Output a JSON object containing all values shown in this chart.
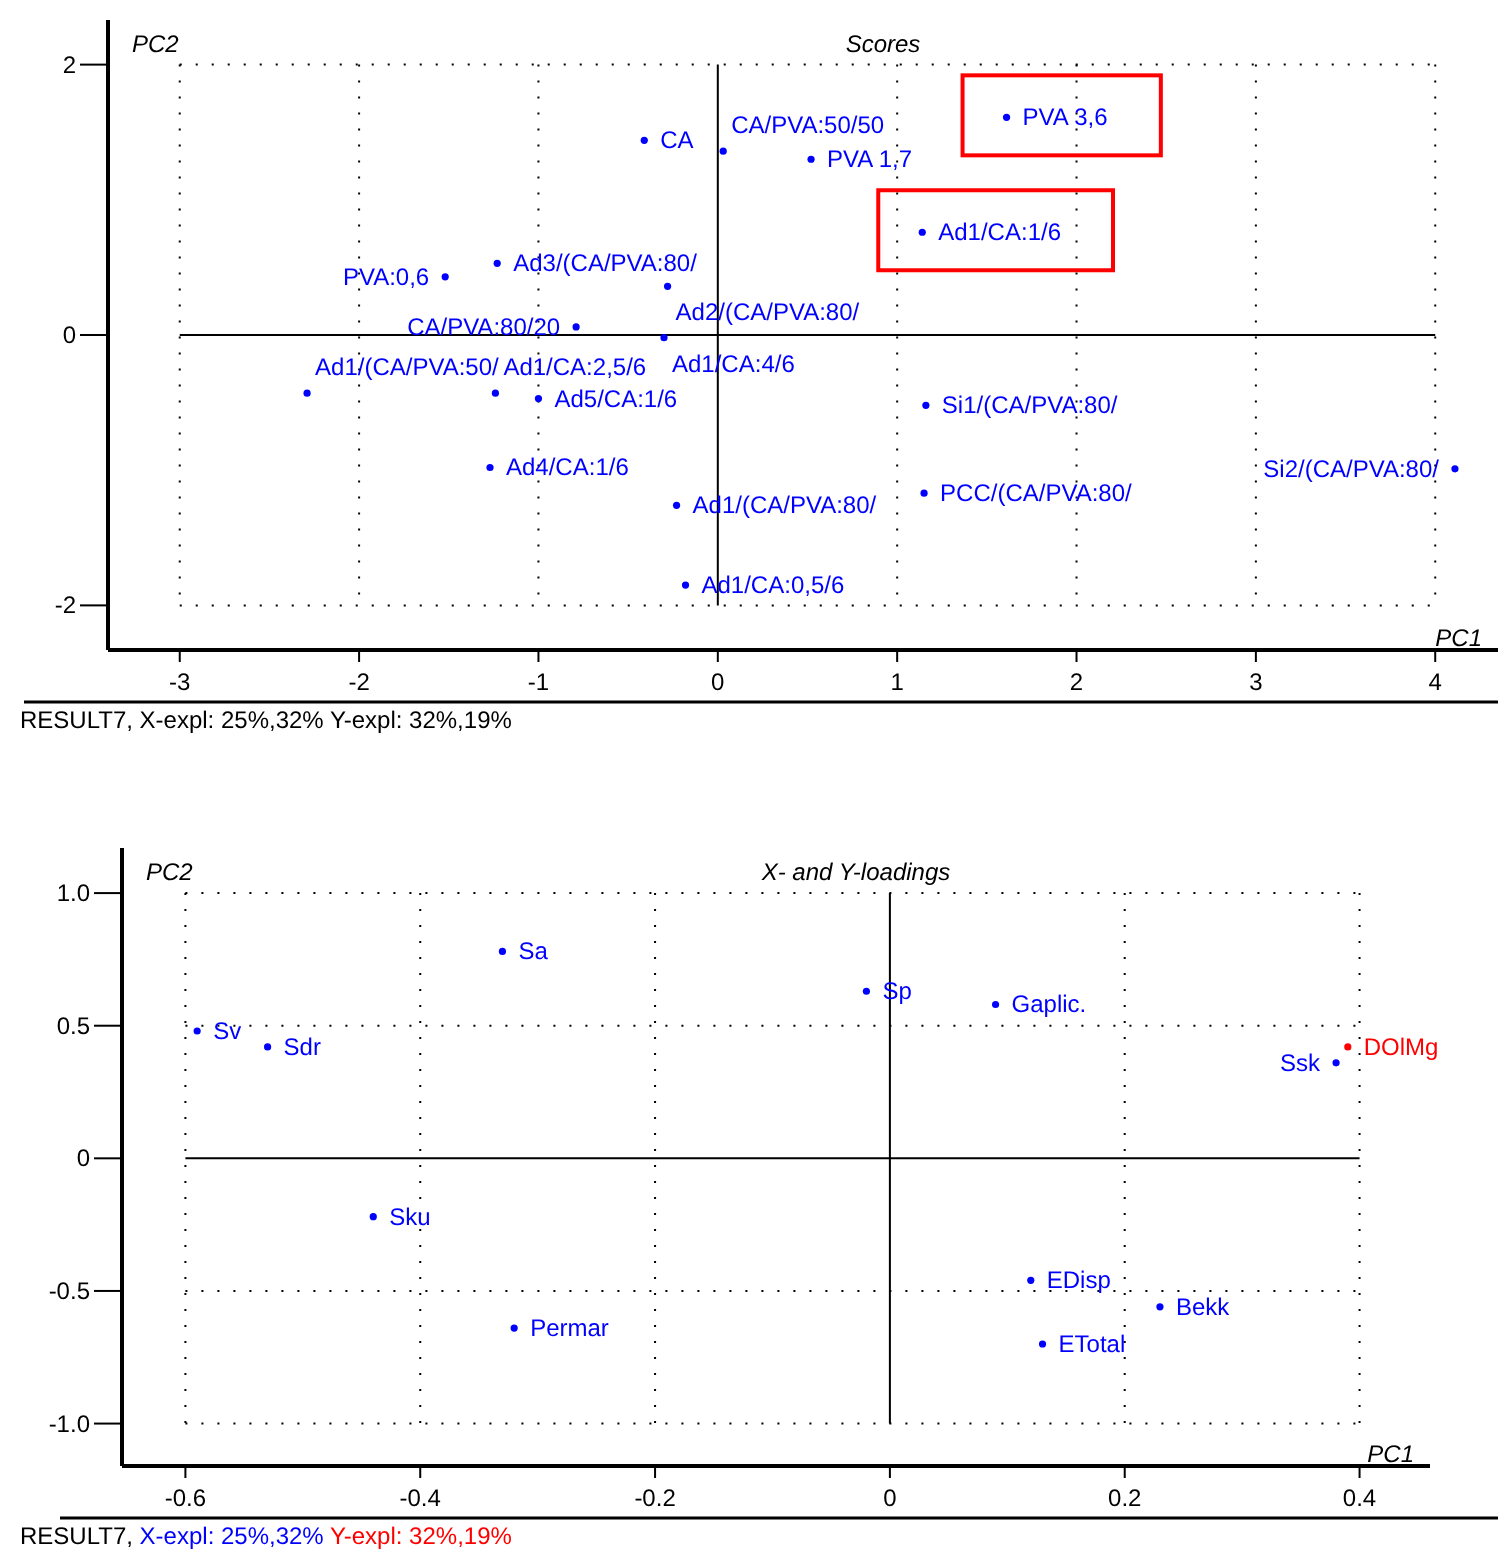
{
  "chart_data": [
    {
      "type": "scatter",
      "title": "Scores",
      "xlabel": "PC1",
      "ylabel": "PC2",
      "xlim": [
        -3.4,
        4.35
      ],
      "ylim": [
        -2.33,
        2.33
      ],
      "xticks": [
        -3,
        -2,
        -1,
        0,
        1,
        2,
        3,
        4
      ],
      "yticks": [
        -2,
        0,
        2
      ],
      "grid": true,
      "legend": false,
      "marker": "circle",
      "annotations": [
        "RESULT7, X-expl: 25%,32%  Y-expl: 32%,19%"
      ],
      "series": [
        {
          "name": "CA",
          "color": "#0000ff",
          "x": [
            -0.41
          ],
          "values": [
            1.44
          ]
        },
        {
          "name": "CA/PVA:50/50",
          "color": "#0000ff",
          "x": [
            0.03
          ],
          "values": [
            1.36
          ]
        },
        {
          "name": "PVA 1,7",
          "color": "#0000ff",
          "x": [
            0.52
          ],
          "values": [
            1.3
          ]
        },
        {
          "name": "PVA 3,6",
          "color": "#0000ff",
          "x": [
            1.61
          ],
          "values": [
            1.61
          ]
        },
        {
          "name": "Ad1/CA:1/6",
          "color": "#0000ff",
          "x": [
            1.14
          ],
          "values": [
            0.76
          ]
        },
        {
          "name": "PVA:0,6",
          "color": "#0000ff",
          "x": [
            -1.52
          ],
          "values": [
            0.43
          ]
        },
        {
          "name": "Ad3/(CA/PVA:80/",
          "color": "#0000ff",
          "x": [
            -1.23
          ],
          "values": [
            0.53
          ]
        },
        {
          "name": "Ad2/(CA/PVA:80/",
          "color": "#0000ff",
          "x": [
            -0.28
          ],
          "values": [
            0.36
          ]
        },
        {
          "name": "CA/PVA:80/20",
          "color": "#0000ff",
          "x": [
            -0.79
          ],
          "values": [
            0.06
          ]
        },
        {
          "name": "Ad1/CA:4/6",
          "color": "#0000ff",
          "x": [
            -0.3
          ],
          "values": [
            -0.02
          ]
        },
        {
          "name": "Ad1/(CA/PVA:50/",
          "color": "#0000ff",
          "x": [
            -2.29
          ],
          "values": [
            -0.43
          ]
        },
        {
          "name": "Ad1/CA:2,5/6",
          "color": "#0000ff",
          "x": [
            -1.24
          ],
          "values": [
            -0.43
          ]
        },
        {
          "name": "Ad5/CA:1/6",
          "color": "#0000ff",
          "x": [
            -1.0
          ],
          "values": [
            -0.47
          ]
        },
        {
          "name": "Ad4/CA:1/6",
          "color": "#0000ff",
          "x": [
            -1.27
          ],
          "values": [
            -0.98
          ]
        },
        {
          "name": "Ad1/(CA/PVA:80/",
          "color": "#0000ff",
          "x": [
            -0.23
          ],
          "values": [
            -1.26
          ]
        },
        {
          "name": "Ad1/CA:0,5/6",
          "color": "#0000ff",
          "x": [
            -0.18
          ],
          "values": [
            -1.85
          ]
        },
        {
          "name": "Si1/(CA/PVA:80/",
          "color": "#0000ff",
          "x": [
            1.16
          ],
          "values": [
            -0.52
          ]
        },
        {
          "name": "PCC/(CA/PVA:80/",
          "color": "#0000ff",
          "x": [
            1.15
          ],
          "values": [
            -1.17
          ]
        },
        {
          "name": "Si2/(CA/PVA:80/",
          "color": "#0000ff",
          "x": [
            4.11
          ],
          "values": [
            -0.99
          ]
        }
      ]
    },
    {
      "type": "scatter",
      "title": "X- and Y-loadings",
      "xlabel": "PC1",
      "ylabel": "PC2",
      "xlim": [
        -0.654,
        0.46
      ],
      "ylim": [
        -1.16,
        1.17
      ],
      "xticks": [
        -0.6,
        -0.4,
        -0.2,
        0,
        0.2,
        0.4
      ],
      "yticks": [
        {
          "value": 1,
          "label": "1.0"
        },
        0.5,
        0,
        -0.5,
        {
          "value": -1,
          "label": "-1.0"
        }
      ],
      "grid": true,
      "legend": false,
      "marker": "circle",
      "annotations": [
        "RESULT7,",
        "X-expl: 25%,32%",
        "Y-expl: 32%,19%"
      ],
      "series": [
        {
          "name": "Sa",
          "color": "#0000ff",
          "x": [
            -0.33
          ],
          "values": [
            0.78
          ]
        },
        {
          "name": "Sv",
          "color": "#0000ff",
          "x": [
            -0.59
          ],
          "values": [
            0.48
          ]
        },
        {
          "name": "Sdr",
          "color": "#0000ff",
          "x": [
            -0.53
          ],
          "values": [
            0.42
          ]
        },
        {
          "name": "Sku",
          "color": "#0000ff",
          "x": [
            -0.44
          ],
          "values": [
            -0.22
          ]
        },
        {
          "name": "Permar",
          "color": "#0000ff",
          "x": [
            -0.32
          ],
          "values": [
            -0.64
          ]
        },
        {
          "name": "Sp",
          "color": "#0000ff",
          "x": [
            -0.02
          ],
          "values": [
            0.63
          ]
        },
        {
          "name": "Gaplic.",
          "color": "#0000ff",
          "x": [
            0.09
          ],
          "values": [
            0.58
          ]
        },
        {
          "name": "Ssk",
          "color": "#0000ff",
          "x": [
            0.38
          ],
          "values": [
            0.36
          ]
        },
        {
          "name": "DOlMg",
          "color": "#ff0000",
          "x": [
            0.39
          ],
          "values": [
            0.42
          ]
        },
        {
          "name": "EDisp",
          "color": "#0000ff",
          "x": [
            0.12
          ],
          "values": [
            -0.46
          ]
        },
        {
          "name": "Bekk",
          "color": "#0000ff",
          "x": [
            0.23
          ],
          "values": [
            -0.56
          ]
        },
        {
          "name": "ETotal",
          "color": "#0000ff",
          "x": [
            0.13
          ],
          "values": [
            -0.7
          ]
        }
      ]
    }
  ]
}
